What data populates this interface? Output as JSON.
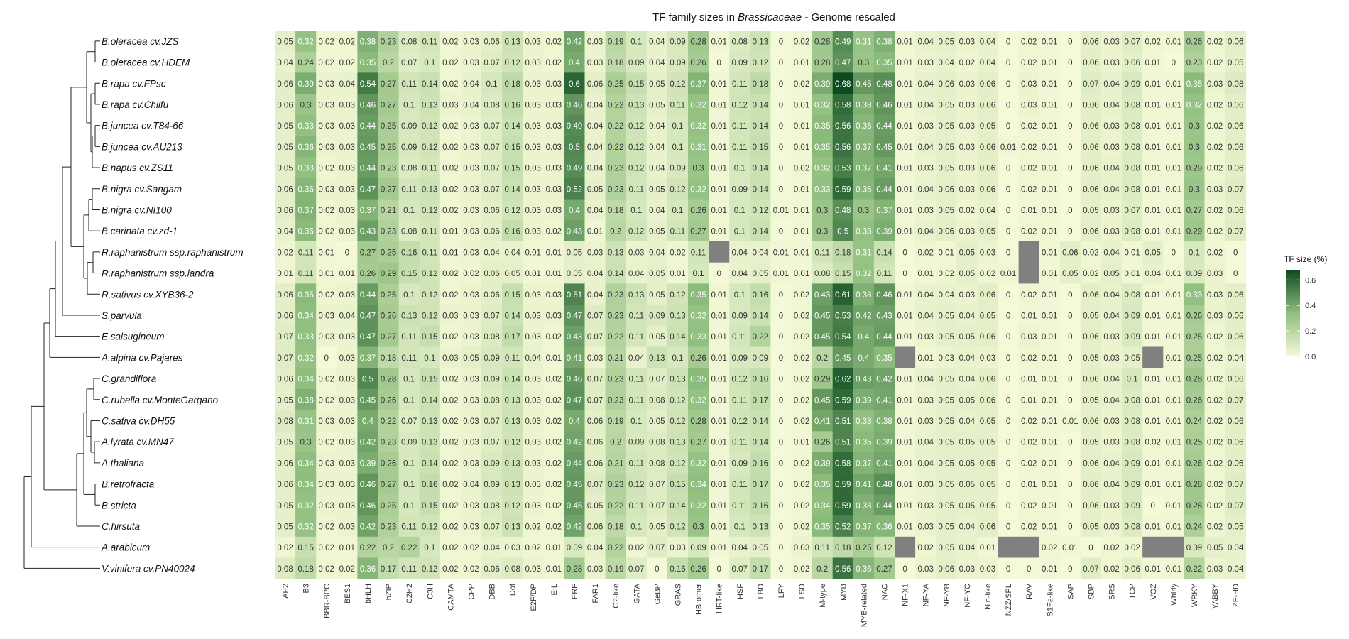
{
  "chart_data": {
    "type": "heatmap",
    "title_prefix": "TF family sizes in ",
    "title_italic": "Brassicaceae",
    "title_suffix": " - Genome rescaled",
    "legend_title": "TF size (%)",
    "legend_ticks": [
      "0.0",
      "0.2",
      "0.4",
      "0.6"
    ],
    "legend_tick_values": [
      0,
      0.2,
      0.4,
      0.6
    ],
    "color_scale": {
      "low": "#f4f9d7",
      "mid": "#8fbe7e",
      "high": "#0c4a1f",
      "min": 0,
      "max": 0.68
    },
    "na_color": "#808080",
    "rows": [
      "B.oleracea cv.JZS",
      "B.oleracea cv.HDEM",
      "B.rapa cv.FPsc",
      "B.rapa cv.Chiifu",
      "B.juncea cv.T84-66",
      "B.juncea cv.AU213",
      "B.napus cv.ZS11",
      "B.nigra cv.Sangam",
      "B.nigra cv.NI100",
      "B.carinata cv.zd-1",
      "R.raphanistrum ssp.raphanistrum",
      "R.raphanistrum ssp.landra",
      "R.sativus cv.XYB36-2",
      "S.parvula",
      "E.salsugineum",
      "A.alpina cv.Pajares",
      "C.grandiflora",
      "C.rubella cv.MonteGargano",
      "C.sativa cv.DH55",
      "A.lyrata cv.MN47",
      "A.thaliana",
      "B.retrofracta",
      "B.stricta",
      "C.hirsuta",
      "A.arabicum",
      "V.vinifera cv.PN40024"
    ],
    "columns": [
      "AP2",
      "B3",
      "BBR-BPC",
      "BES1",
      "bHLH",
      "bZIP",
      "C2H2",
      "C3H",
      "CAMTA",
      "CPP",
      "DBB",
      "Dof",
      "E2F/DP",
      "EIL",
      "ERF",
      "FAR1",
      "G2-like",
      "GATA",
      "GeBP",
      "GRAS",
      "HB-other",
      "HRT-like",
      "HSF",
      "LBD",
      "LFY",
      "LSD",
      "M-type",
      "MYB",
      "MYB-related",
      "NAC",
      "NF-X1",
      "NF-YA",
      "NF-YB",
      "NF-YC",
      "Nin-like",
      "NZZ/SPL",
      "RAV",
      "S1Fa-like",
      "SAP",
      "SBP",
      "SRS",
      "TCP",
      "VOZ",
      "Whirly",
      "WRKY",
      "YABBY",
      "ZF-HD"
    ],
    "values": [
      [
        0.05,
        0.32,
        0.02,
        0.02,
        0.38,
        0.23,
        0.08,
        0.11,
        0.02,
        0.03,
        0.06,
        0.13,
        0.03,
        0.02,
        0.42,
        0.03,
        0.19,
        0.1,
        0.04,
        0.09,
        0.28,
        0.01,
        0.08,
        0.13,
        0,
        0.02,
        0.28,
        0.49,
        0.31,
        0.38,
        0.01,
        0.04,
        0.05,
        0.03,
        0.04,
        0,
        0.02,
        0.01,
        0,
        0.06,
        0.03,
        0.07,
        0.02,
        0.01,
        0.26,
        0.02,
        0.06
      ],
      [
        0.04,
        0.24,
        0.02,
        0.02,
        0.35,
        0.2,
        0.07,
        0.1,
        0.02,
        0.03,
        0.07,
        0.12,
        0.03,
        0.02,
        0.4,
        0.03,
        0.18,
        0.09,
        0.04,
        0.09,
        0.26,
        0,
        0.09,
        0.12,
        0,
        0.01,
        0.28,
        0.47,
        0.3,
        0.35,
        0.01,
        0.03,
        0.04,
        0.02,
        0.04,
        0,
        0.02,
        0.01,
        0,
        0.06,
        0.03,
        0.06,
        0.01,
        0,
        0.23,
        0.02,
        0.05
      ],
      [
        0.06,
        0.39,
        0.03,
        0.04,
        0.54,
        0.27,
        0.11,
        0.14,
        0.02,
        0.04,
        0.1,
        0.18,
        0.03,
        0.03,
        0.6,
        0.06,
        0.25,
        0.15,
        0.05,
        0.12,
        0.37,
        0.01,
        0.11,
        0.18,
        0,
        0.02,
        0.39,
        0.68,
        0.45,
        0.48,
        0.01,
        0.04,
        0.06,
        0.03,
        0.06,
        0,
        0.03,
        0.01,
        0,
        0.07,
        0.04,
        0.09,
        0.01,
        0.01,
        0.35,
        0.03,
        0.08
      ],
      [
        0.06,
        0.3,
        0.03,
        0.03,
        0.46,
        0.27,
        0.1,
        0.13,
        0.03,
        0.04,
        0.08,
        0.16,
        0.03,
        0.03,
        0.46,
        0.04,
        0.22,
        0.13,
        0.05,
        0.11,
        0.32,
        0.01,
        0.12,
        0.14,
        0,
        0.01,
        0.32,
        0.58,
        0.38,
        0.46,
        0.01,
        0.04,
        0.05,
        0.03,
        0.06,
        0,
        0.03,
        0.01,
        0,
        0.06,
        0.04,
        0.08,
        0.01,
        0.01,
        0.32,
        0.02,
        0.06
      ],
      [
        0.05,
        0.33,
        0.03,
        0.03,
        0.44,
        0.25,
        0.09,
        0.12,
        0.02,
        0.03,
        0.07,
        0.14,
        0.03,
        0.03,
        0.49,
        0.04,
        0.22,
        0.12,
        0.04,
        0.1,
        0.32,
        0.01,
        0.11,
        0.14,
        0,
        0.01,
        0.35,
        0.56,
        0.36,
        0.44,
        0.01,
        0.03,
        0.05,
        0.03,
        0.05,
        0,
        0.02,
        0.01,
        0,
        0.06,
        0.03,
        0.08,
        0.01,
        0.01,
        0.3,
        0.02,
        0.06
      ],
      [
        0.05,
        0.36,
        0.03,
        0.03,
        0.45,
        0.25,
        0.09,
        0.12,
        0.02,
        0.03,
        0.07,
        0.15,
        0.03,
        0.03,
        0.5,
        0.04,
        0.22,
        0.12,
        0.04,
        0.1,
        0.31,
        0.01,
        0.11,
        0.15,
        0,
        0.01,
        0.35,
        0.56,
        0.37,
        0.45,
        0.01,
        0.04,
        0.05,
        0.03,
        0.06,
        0.01,
        0.02,
        0.01,
        0,
        0.06,
        0.03,
        0.08,
        0.01,
        0.01,
        0.3,
        0.02,
        0.06
      ],
      [
        0.05,
        0.33,
        0.02,
        0.03,
        0.44,
        0.23,
        0.08,
        0.11,
        0.02,
        0.03,
        0.07,
        0.15,
        0.03,
        0.03,
        0.49,
        0.04,
        0.23,
        0.12,
        0.04,
        0.09,
        0.3,
        0.01,
        0.1,
        0.14,
        0,
        0.02,
        0.32,
        0.53,
        0.37,
        0.41,
        0.01,
        0.03,
        0.05,
        0.03,
        0.06,
        0,
        0.02,
        0.01,
        0,
        0.06,
        0.04,
        0.08,
        0.01,
        0.01,
        0.29,
        0.02,
        0.06
      ],
      [
        0.06,
        0.36,
        0.03,
        0.03,
        0.47,
        0.27,
        0.11,
        0.13,
        0.02,
        0.03,
        0.07,
        0.14,
        0.03,
        0.03,
        0.52,
        0.05,
        0.23,
        0.11,
        0.05,
        0.12,
        0.32,
        0.01,
        0.09,
        0.14,
        0,
        0.01,
        0.33,
        0.59,
        0.36,
        0.44,
        0.01,
        0.04,
        0.06,
        0.03,
        0.06,
        0,
        0.02,
        0.01,
        0,
        0.06,
        0.04,
        0.08,
        0.01,
        0.01,
        0.3,
        0.03,
        0.07
      ],
      [
        0.06,
        0.37,
        0.02,
        0.03,
        0.37,
        0.21,
        0.1,
        0.12,
        0.02,
        0.03,
        0.06,
        0.12,
        0.03,
        0.03,
        0.4,
        0.04,
        0.18,
        0.1,
        0.04,
        0.1,
        0.26,
        0.01,
        0.1,
        0.12,
        0.01,
        0.01,
        0.3,
        0.48,
        0.3,
        0.37,
        0.01,
        0.03,
        0.05,
        0.02,
        0.04,
        0,
        0.01,
        0.01,
        0,
        0.05,
        0.03,
        0.07,
        0.01,
        0.01,
        0.27,
        0.02,
        0.06
      ],
      [
        0.04,
        0.35,
        0.02,
        0.03,
        0.43,
        0.23,
        0.08,
        0.11,
        0.01,
        0.03,
        0.06,
        0.16,
        0.03,
        0.02,
        0.43,
        0.01,
        0.2,
        0.12,
        0.05,
        0.11,
        0.27,
        0.01,
        0.1,
        0.14,
        0,
        0.01,
        0.3,
        0.5,
        0.33,
        0.39,
        0.01,
        0.04,
        0.06,
        0.03,
        0.05,
        0,
        0.02,
        0.01,
        0,
        0.06,
        0.03,
        0.08,
        0.01,
        0.01,
        0.29,
        0.02,
        0.07
      ],
      [
        0.02,
        0.11,
        0.01,
        0,
        0.27,
        0.25,
        0.16,
        0.11,
        0.01,
        0.03,
        0.04,
        0.04,
        0.01,
        0.01,
        0.05,
        0.03,
        0.13,
        0.03,
        0.04,
        0.02,
        0.11,
        null,
        0.04,
        0.04,
        0.01,
        0.01,
        0.11,
        0.18,
        0.31,
        0.14,
        0,
        0.02,
        0.01,
        0.05,
        0.03,
        0,
        null,
        0.01,
        0.06,
        0.02,
        0.04,
        0.01,
        0.05,
        0,
        0.1,
        0.02,
        0
      ],
      [
        0.01,
        0.11,
        0.01,
        0.01,
        0.26,
        0.29,
        0.15,
        0.12,
        0.02,
        0.02,
        0.06,
        0.05,
        0.01,
        0.01,
        0.05,
        0.04,
        0.14,
        0.04,
        0.05,
        0.01,
        0.1,
        0,
        0.04,
        0.05,
        0.01,
        0.01,
        0.08,
        0.15,
        0.32,
        0.11,
        0,
        0.01,
        0.02,
        0.05,
        0.02,
        0.01,
        null,
        0.01,
        0.05,
        0.02,
        0.05,
        0.01,
        0.04,
        0.01,
        0.09,
        0.03,
        0
      ],
      [
        0.06,
        0.35,
        0.02,
        0.03,
        0.44,
        0.25,
        0.1,
        0.12,
        0.02,
        0.03,
        0.06,
        0.15,
        0.03,
        0.03,
        0.51,
        0.04,
        0.23,
        0.13,
        0.05,
        0.12,
        0.35,
        0.01,
        0.1,
        0.16,
        0,
        0.02,
        0.43,
        0.61,
        0.38,
        0.46,
        0.01,
        0.04,
        0.04,
        0.03,
        0.06,
        0,
        0.02,
        0.01,
        0,
        0.06,
        0.04,
        0.08,
        0.01,
        0.01,
        0.33,
        0.03,
        0.06
      ],
      [
        0.06,
        0.34,
        0.03,
        0.04,
        0.47,
        0.26,
        0.13,
        0.12,
        0.03,
        0.03,
        0.07,
        0.14,
        0.03,
        0.03,
        0.47,
        0.07,
        0.23,
        0.11,
        0.09,
        0.13,
        0.32,
        0.01,
        0.09,
        0.14,
        0,
        0.02,
        0.45,
        0.53,
        0.42,
        0.43,
        0.01,
        0.04,
        0.05,
        0.04,
        0.05,
        0,
        0.01,
        0.01,
        0,
        0.05,
        0.04,
        0.09,
        0.01,
        0.01,
        0.26,
        0.03,
        0.06
      ],
      [
        0.07,
        0.33,
        0.03,
        0.03,
        0.47,
        0.27,
        0.11,
        0.15,
        0.02,
        0.03,
        0.08,
        0.17,
        0.03,
        0.02,
        0.43,
        0.07,
        0.22,
        0.11,
        0.05,
        0.14,
        0.33,
        0.01,
        0.11,
        0.22,
        0,
        0.02,
        0.45,
        0.54,
        0.4,
        0.44,
        0.01,
        0.03,
        0.05,
        0.05,
        0.06,
        0,
        0.03,
        0.01,
        0,
        0.06,
        0.03,
        0.09,
        0.01,
        0.01,
        0.25,
        0.02,
        0.06
      ],
      [
        0.07,
        0.32,
        0,
        0.03,
        0.37,
        0.18,
        0.11,
        0.1,
        0.03,
        0.05,
        0.09,
        0.11,
        0.04,
        0.01,
        0.41,
        0.03,
        0.21,
        0.04,
        0.13,
        0.1,
        0.26,
        0.01,
        0.09,
        0.09,
        0,
        0.02,
        0.2,
        0.45,
        0.4,
        0.35,
        null,
        0.01,
        0.03,
        0.04,
        0.03,
        0,
        0.02,
        0.01,
        0,
        0.05,
        0.03,
        0.05,
        null,
        0.01,
        0.25,
        0.02,
        0.04
      ],
      [
        0.06,
        0.34,
        0.02,
        0.03,
        0.5,
        0.28,
        0.1,
        0.15,
        0.02,
        0.03,
        0.09,
        0.14,
        0.03,
        0.02,
        0.46,
        0.07,
        0.23,
        0.11,
        0.07,
        0.13,
        0.35,
        0.01,
        0.12,
        0.16,
        0,
        0.02,
        0.29,
        0.62,
        0.43,
        0.42,
        0.01,
        0.04,
        0.05,
        0.04,
        0.06,
        0,
        0.01,
        0.01,
        0,
        0.06,
        0.04,
        0.1,
        0.01,
        0.01,
        0.28,
        0.02,
        0.06
      ],
      [
        0.05,
        0.38,
        0.02,
        0.03,
        0.45,
        0.26,
        0.1,
        0.14,
        0.02,
        0.03,
        0.08,
        0.13,
        0.03,
        0.02,
        0.47,
        0.07,
        0.23,
        0.11,
        0.08,
        0.12,
        0.32,
        0.01,
        0.11,
        0.17,
        0,
        0.02,
        0.45,
        0.59,
        0.39,
        0.41,
        0.01,
        0.03,
        0.05,
        0.05,
        0.06,
        0,
        0.01,
        0.01,
        0,
        0.05,
        0.04,
        0.08,
        0.01,
        0.01,
        0.26,
        0.02,
        0.07
      ],
      [
        0.08,
        0.31,
        0.03,
        0.03,
        0.4,
        0.22,
        0.07,
        0.13,
        0.02,
        0.03,
        0.07,
        0.13,
        0.03,
        0.02,
        0.4,
        0.06,
        0.19,
        0.1,
        0.05,
        0.12,
        0.28,
        0.01,
        0.12,
        0.14,
        0,
        0.02,
        0.41,
        0.51,
        0.33,
        0.38,
        0.01,
        0.03,
        0.05,
        0.04,
        0.05,
        0,
        0.02,
        0.01,
        0.01,
        0.06,
        0.03,
        0.08,
        0.01,
        0.01,
        0.24,
        0.02,
        0.06
      ],
      [
        0.05,
        0.3,
        0.02,
        0.03,
        0.42,
        0.23,
        0.09,
        0.13,
        0.02,
        0.03,
        0.07,
        0.12,
        0.03,
        0.02,
        0.42,
        0.06,
        0.2,
        0.09,
        0.08,
        0.13,
        0.27,
        0.01,
        0.11,
        0.14,
        0,
        0.01,
        0.26,
        0.51,
        0.35,
        0.39,
        0.01,
        0.04,
        0.05,
        0.05,
        0.05,
        0,
        0.02,
        0.01,
        0,
        0.05,
        0.03,
        0.08,
        0.02,
        0.01,
        0.25,
        0.02,
        0.06
      ],
      [
        0.06,
        0.34,
        0.03,
        0.03,
        0.39,
        0.26,
        0.1,
        0.14,
        0.02,
        0.03,
        0.09,
        0.13,
        0.03,
        0.02,
        0.44,
        0.06,
        0.21,
        0.11,
        0.08,
        0.12,
        0.32,
        0.01,
        0.09,
        0.16,
        0,
        0.02,
        0.39,
        0.58,
        0.37,
        0.41,
        0.01,
        0.04,
        0.05,
        0.05,
        0.05,
        0,
        0.02,
        0.01,
        0,
        0.06,
        0.04,
        0.09,
        0.01,
        0.01,
        0.26,
        0.02,
        0.06
      ],
      [
        0.06,
        0.34,
        0.03,
        0.03,
        0.46,
        0.27,
        0.1,
        0.16,
        0.02,
        0.04,
        0.09,
        0.13,
        0.03,
        0.02,
        0.45,
        0.07,
        0.23,
        0.12,
        0.07,
        0.15,
        0.34,
        0.01,
        0.11,
        0.17,
        0,
        0.02,
        0.35,
        0.59,
        0.41,
        0.48,
        0.01,
        0.03,
        0.05,
        0.05,
        0.05,
        0,
        0.01,
        0.01,
        0,
        0.06,
        0.04,
        0.09,
        0.01,
        0.01,
        0.28,
        0.02,
        0.07
      ],
      [
        0.05,
        0.32,
        0.03,
        0.03,
        0.46,
        0.25,
        0.1,
        0.15,
        0.02,
        0.03,
        0.08,
        0.12,
        0.03,
        0.02,
        0.45,
        0.05,
        0.22,
        0.11,
        0.07,
        0.14,
        0.32,
        0.01,
        0.11,
        0.16,
        0,
        0.02,
        0.34,
        0.59,
        0.38,
        0.44,
        0.01,
        0.03,
        0.05,
        0.05,
        0.05,
        0,
        0.02,
        0.01,
        0,
        0.06,
        0.03,
        0.09,
        0,
        0.01,
        0.28,
        0.02,
        0.07
      ],
      [
        0.05,
        0.32,
        0.02,
        0.03,
        0.42,
        0.23,
        0.11,
        0.12,
        0.02,
        0.03,
        0.07,
        0.13,
        0.02,
        0.02,
        0.42,
        0.06,
        0.18,
        0.1,
        0.05,
        0.12,
        0.3,
        0.01,
        0.1,
        0.13,
        0,
        0.02,
        0.35,
        0.52,
        0.37,
        0.36,
        0.01,
        0.03,
        0.05,
        0.04,
        0.06,
        0,
        0.02,
        0.01,
        0,
        0.05,
        0.03,
        0.08,
        0.01,
        0.01,
        0.24,
        0.02,
        0.05
      ],
      [
        0.02,
        0.15,
        0.02,
        0.01,
        0.22,
        0.2,
        0.22,
        0.1,
        0.02,
        0.02,
        0.04,
        0.03,
        0.02,
        0.01,
        0.09,
        0.04,
        0.22,
        0.02,
        0.07,
        0.03,
        0.09,
        0.01,
        0.04,
        0.05,
        0,
        0.03,
        0.11,
        0.18,
        0.25,
        0.12,
        null,
        0.02,
        0.05,
        0.04,
        0.01,
        null,
        null,
        0.02,
        0.01,
        0,
        0.02,
        0.02,
        null,
        null,
        0.09,
        0.05,
        0.04
      ],
      [
        0.08,
        0.18,
        0.02,
        0.02,
        0.36,
        0.17,
        0.11,
        0.12,
        0.02,
        0.02,
        0.06,
        0.08,
        0.03,
        0.01,
        0.28,
        0.03,
        0.19,
        0.07,
        0,
        0.16,
        0.26,
        0,
        0.07,
        0.17,
        0,
        0.02,
        0.2,
        0.56,
        0.36,
        0.27,
        0,
        0.03,
        0.06,
        0.03,
        0.03,
        0,
        0,
        0.01,
        0,
        0.07,
        0.02,
        0.06,
        0.01,
        0.01,
        0.22,
        0.03,
        0.04
      ]
    ]
  }
}
